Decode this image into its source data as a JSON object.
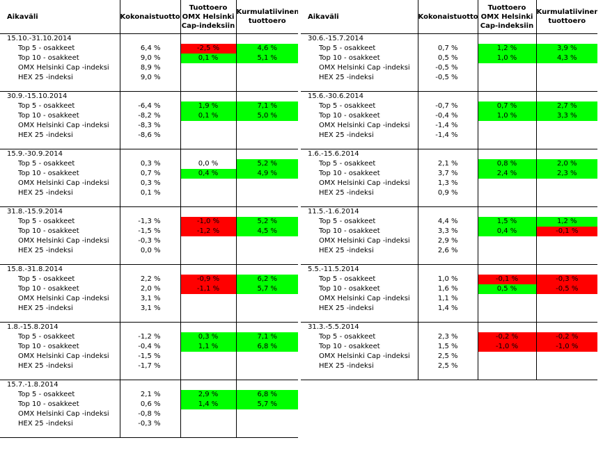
{
  "colors": {
    "positive": "#00ff00",
    "negative": "#ff0000"
  },
  "headers": {
    "period": "Aikaväli",
    "total": "Kokonaistuotto",
    "diff_line1": "Tuottoero",
    "diff_line2": "OMX Helsinki",
    "diff_line3": "Cap-indeksiin",
    "cum_line1": "Kurmulatiivinen",
    "cum_line2": "tuottoero"
  },
  "left": [
    {
      "period": "15.10.-31.10.2014",
      "rows": [
        {
          "name": "Top 5 - osakkeet",
          "total": "6,4 %",
          "diff": "-2,5 %",
          "diff_s": "neg",
          "cum": "4,6 %",
          "cum_s": "pos"
        },
        {
          "name": "Top 10 - osakkeet",
          "total": "9,0 %",
          "diff": "0,1 %",
          "diff_s": "pos",
          "cum": "5,1 %",
          "cum_s": "pos"
        },
        {
          "name": "OMX Helsinki Cap -indeksi",
          "total": "8,9 %",
          "diff": "",
          "diff_s": "",
          "cum": "",
          "cum_s": ""
        },
        {
          "name": "HEX 25 -indeksi",
          "total": "9,0 %",
          "diff": "",
          "diff_s": "",
          "cum": "",
          "cum_s": ""
        }
      ]
    },
    {
      "period": "30.9.-15.10.2014",
      "rows": [
        {
          "name": "Top 5 - osakkeet",
          "total": "-6,4 %",
          "diff": "1,9 %",
          "diff_s": "pos",
          "cum": "7,1 %",
          "cum_s": "pos"
        },
        {
          "name": "Top 10 - osakkeet",
          "total": "-8,2 %",
          "diff": "0,1 %",
          "diff_s": "pos",
          "cum": "5,0 %",
          "cum_s": "pos"
        },
        {
          "name": "OMX Helsinki Cap -indeksi",
          "total": "-8,3 %",
          "diff": "",
          "diff_s": "",
          "cum": "",
          "cum_s": ""
        },
        {
          "name": "HEX 25 -indeksi",
          "total": "-8,6 %",
          "diff": "",
          "diff_s": "",
          "cum": "",
          "cum_s": ""
        }
      ]
    },
    {
      "period": "15.9.-30.9.2014",
      "rows": [
        {
          "name": "Top 5 - osakkeet",
          "total": "0,3 %",
          "diff": "0,0 %",
          "diff_s": "",
          "cum": "5,2 %",
          "cum_s": "pos"
        },
        {
          "name": "Top 10 - osakkeet",
          "total": "0,7 %",
          "diff": "0,4 %",
          "diff_s": "pos",
          "cum": "4,9 %",
          "cum_s": "pos"
        },
        {
          "name": "OMX Helsinki Cap -indeksi",
          "total": "0,3 %",
          "diff": "",
          "diff_s": "",
          "cum": "",
          "cum_s": ""
        },
        {
          "name": "HEX 25 -indeksi",
          "total": "0,1 %",
          "diff": "",
          "diff_s": "",
          "cum": "",
          "cum_s": ""
        }
      ]
    },
    {
      "period": "31.8.-15.9.2014",
      "rows": [
        {
          "name": "Top 5 - osakkeet",
          "total": "-1,3 %",
          "diff": "-1,0 %",
          "diff_s": "neg",
          "cum": "5,2 %",
          "cum_s": "pos"
        },
        {
          "name": "Top 10 - osakkeet",
          "total": "-1,5 %",
          "diff": "-1,2 %",
          "diff_s": "neg",
          "cum": "4,5 %",
          "cum_s": "pos"
        },
        {
          "name": "OMX Helsinki Cap -indeksi",
          "total": "-0,3 %",
          "diff": "",
          "diff_s": "",
          "cum": "",
          "cum_s": ""
        },
        {
          "name": "HEX 25 -indeksi",
          "total": "0,0 %",
          "diff": "",
          "diff_s": "",
          "cum": "",
          "cum_s": ""
        }
      ]
    },
    {
      "period": "15.8.-31.8.2014",
      "rows": [
        {
          "name": "Top 5 - osakkeet",
          "total": "2,2 %",
          "diff": "-0,9 %",
          "diff_s": "neg",
          "cum": "6,2 %",
          "cum_s": "pos"
        },
        {
          "name": "Top 10 - osakkeet",
          "total": "2,0 %",
          "diff": "-1,1 %",
          "diff_s": "neg",
          "cum": "5,7 %",
          "cum_s": "pos"
        },
        {
          "name": "OMX Helsinki Cap -indeksi",
          "total": "3,1 %",
          "diff": "",
          "diff_s": "",
          "cum": "",
          "cum_s": ""
        },
        {
          "name": "HEX 25 -indeksi",
          "total": "3,1 %",
          "diff": "",
          "diff_s": "",
          "cum": "",
          "cum_s": ""
        }
      ]
    },
    {
      "period": "1.8.-15.8.2014",
      "rows": [
        {
          "name": "Top 5 - osakkeet",
          "total": "-1,2 %",
          "diff": "0,3 %",
          "diff_s": "pos",
          "cum": "7,1 %",
          "cum_s": "pos"
        },
        {
          "name": "Top 10 - osakkeet",
          "total": "-0,4 %",
          "diff": "1,1 %",
          "diff_s": "pos",
          "cum": "6,8 %",
          "cum_s": "pos"
        },
        {
          "name": "OMX Helsinki Cap -indeksi",
          "total": "-1,5 %",
          "diff": "",
          "diff_s": "",
          "cum": "",
          "cum_s": ""
        },
        {
          "name": "HEX 25 -indeksi",
          "total": "-1,7 %",
          "diff": "",
          "diff_s": "",
          "cum": "",
          "cum_s": ""
        }
      ]
    },
    {
      "period": "15.7.-1.8.2014",
      "rows": [
        {
          "name": "Top 5 - osakkeet",
          "total": "2,1 %",
          "diff": "2,9 %",
          "diff_s": "pos",
          "cum": "6,8 %",
          "cum_s": "pos"
        },
        {
          "name": "Top 10 - osakkeet",
          "total": "0,6 %",
          "diff": "1,4 %",
          "diff_s": "pos",
          "cum": "5,7 %",
          "cum_s": "pos"
        },
        {
          "name": "OMX Helsinki Cap -indeksi",
          "total": "-0,8 %",
          "diff": "",
          "diff_s": "",
          "cum": "",
          "cum_s": ""
        },
        {
          "name": "HEX 25 -indeksi",
          "total": "-0,3 %",
          "diff": "",
          "diff_s": "",
          "cum": "",
          "cum_s": ""
        }
      ]
    }
  ],
  "right": [
    {
      "period": "30.6.-15.7.2014",
      "rows": [
        {
          "name": "Top 5 - osakkeet",
          "total": "0,7 %",
          "diff": "1,2 %",
          "diff_s": "pos",
          "cum": "3,9 %",
          "cum_s": "pos"
        },
        {
          "name": "Top 10 - osakkeet",
          "total": "0,5 %",
          "diff": "1,0 %",
          "diff_s": "pos",
          "cum": "4,3 %",
          "cum_s": "pos"
        },
        {
          "name": "OMX Helsinki Cap -indeksi",
          "total": "-0,5 %",
          "diff": "",
          "diff_s": "",
          "cum": "",
          "cum_s": ""
        },
        {
          "name": "HEX 25 -indeksi",
          "total": "-0,5 %",
          "diff": "",
          "diff_s": "",
          "cum": "",
          "cum_s": ""
        }
      ]
    },
    {
      "period": "15.6.-30.6.2014",
      "rows": [
        {
          "name": "Top 5 - osakkeet",
          "total": "-0,7 %",
          "diff": "0,7 %",
          "diff_s": "pos",
          "cum": "2,7 %",
          "cum_s": "pos"
        },
        {
          "name": "Top 10 - osakkeet",
          "total": "-0,4 %",
          "diff": "1,0 %",
          "diff_s": "pos",
          "cum": "3,3 %",
          "cum_s": "pos"
        },
        {
          "name": "OMX Helsinki Cap -indeksi",
          "total": "-1,4 %",
          "diff": "",
          "diff_s": "",
          "cum": "",
          "cum_s": ""
        },
        {
          "name": "HEX 25 -indeksi",
          "total": "-1,4 %",
          "diff": "",
          "diff_s": "",
          "cum": "",
          "cum_s": ""
        }
      ]
    },
    {
      "period": "1.6.-15.6.2014",
      "rows": [
        {
          "name": "Top 5 - osakkeet",
          "total": "2,1 %",
          "diff": "0,8 %",
          "diff_s": "pos",
          "cum": "2,0 %",
          "cum_s": "pos"
        },
        {
          "name": "Top 10 - osakkeet",
          "total": "3,7 %",
          "diff": "2,4 %",
          "diff_s": "pos",
          "cum": "2,3 %",
          "cum_s": "pos"
        },
        {
          "name": "OMX Helsinki Cap -indeksi",
          "total": "1,3 %",
          "diff": "",
          "diff_s": "",
          "cum": "",
          "cum_s": ""
        },
        {
          "name": "HEX 25 -indeksi",
          "total": "0,9 %",
          "diff": "",
          "diff_s": "",
          "cum": "",
          "cum_s": ""
        }
      ]
    },
    {
      "period": "11.5.-1.6.2014",
      "rows": [
        {
          "name": "Top 5 - osakkeet",
          "total": "4,4 %",
          "diff": "1,5 %",
          "diff_s": "pos",
          "cum": "1,2 %",
          "cum_s": "pos"
        },
        {
          "name": "Top 10 - osakkeet",
          "total": "3,3 %",
          "diff": "0,4 %",
          "diff_s": "pos",
          "cum": "-0,1 %",
          "cum_s": "neg"
        },
        {
          "name": "OMX Helsinki Cap -indeksi",
          "total": "2,9 %",
          "diff": "",
          "diff_s": "",
          "cum": "",
          "cum_s": ""
        },
        {
          "name": "HEX 25 -indeksi",
          "total": "2,6 %",
          "diff": "",
          "diff_s": "",
          "cum": "",
          "cum_s": ""
        }
      ]
    },
    {
      "period": "5.5.-11.5.2014",
      "rows": [
        {
          "name": "Top 5 - osakkeet",
          "total": "1,0 %",
          "diff": "-0,1 %",
          "diff_s": "neg",
          "cum": "-0,3 %",
          "cum_s": "neg"
        },
        {
          "name": "Top 10 - osakkeet",
          "total": "1,6 %",
          "diff": "0,5 %",
          "diff_s": "pos",
          "cum": "-0,5 %",
          "cum_s": "neg"
        },
        {
          "name": "OMX Helsinki Cap -indeksi",
          "total": "1,1 %",
          "diff": "",
          "diff_s": "",
          "cum": "",
          "cum_s": ""
        },
        {
          "name": "HEX 25 -indeksi",
          "total": "1,4 %",
          "diff": "",
          "diff_s": "",
          "cum": "",
          "cum_s": ""
        }
      ]
    },
    {
      "period": "31.3.-5.5.2014",
      "rows": [
        {
          "name": "Top 5 - osakkeet",
          "total": "2,3 %",
          "diff": "-0,2 %",
          "diff_s": "neg",
          "cum": "-0,2 %",
          "cum_s": "neg"
        },
        {
          "name": "Top 10 - osakkeet",
          "total": "1,5 %",
          "diff": "-1,0 %",
          "diff_s": "neg",
          "cum": "-1,0 %",
          "cum_s": "neg"
        },
        {
          "name": "OMX Helsinki Cap -indeksi",
          "total": "2,5 %",
          "diff": "",
          "diff_s": "",
          "cum": "",
          "cum_s": ""
        },
        {
          "name": "HEX 25 -indeksi",
          "total": "2,5 %",
          "diff": "",
          "diff_s": "",
          "cum": "",
          "cum_s": ""
        }
      ]
    }
  ]
}
